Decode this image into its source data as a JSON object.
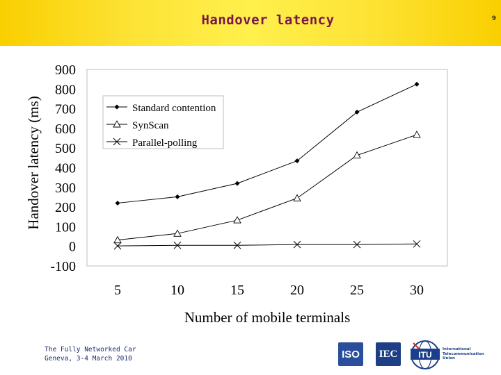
{
  "slide": {
    "title": "Handover latency",
    "number": "9",
    "footer_line1": "The Fully Networked Car",
    "footer_line2": "Geneva, 3-4 March 2010",
    "colors": {
      "title": "#7a1650",
      "header_gradient": [
        "#f9cf00",
        "#fff04d"
      ],
      "footer_text": "#1b2a6b"
    }
  },
  "logos": {
    "iso_label": "ISO",
    "iec_label": "IEC",
    "itu_label": "ITU",
    "itu_name_line1": "International",
    "itu_name_line2": "Telecommunication",
    "itu_name_line3": "Union"
  },
  "chart_data": {
    "type": "line",
    "title": "",
    "xlabel": "Number of mobile terminals",
    "ylabel": "Handover latency (ms)",
    "categories": [
      5,
      10,
      15,
      20,
      25,
      30
    ],
    "x_ticks": [
      "5",
      "10",
      "15",
      "20",
      "25",
      "30"
    ],
    "y_ticks": [
      "900",
      "800",
      "700",
      "600",
      "500",
      "400",
      "300",
      "200",
      "100",
      "0",
      "-100"
    ],
    "ylim": [
      -100,
      900
    ],
    "grid": false,
    "legend_position": "top-left",
    "series": [
      {
        "name": "Standard contention",
        "marker": "diamond",
        "values": [
          220,
          252,
          320,
          435,
          683,
          825
        ]
      },
      {
        "name": "SynScan",
        "marker": "triangle",
        "values": [
          32,
          65,
          133,
          245,
          463,
          568
        ]
      },
      {
        "name": "Parallel-polling",
        "marker": "x",
        "values": [
          2,
          5,
          5,
          9,
          9,
          12
        ]
      }
    ]
  }
}
